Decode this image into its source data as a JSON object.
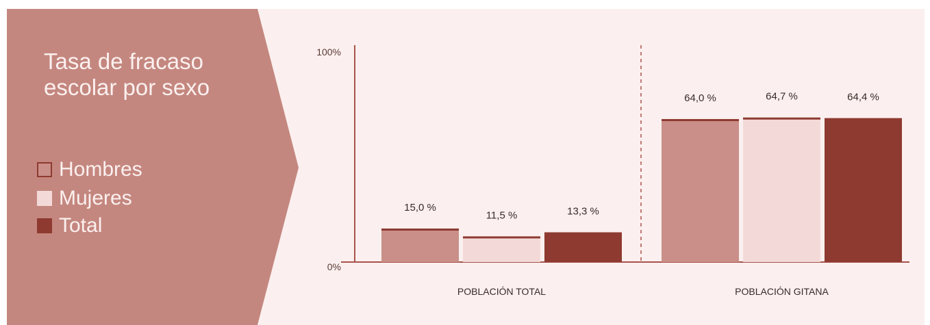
{
  "panel": {
    "title_line1": "Tasa de fracaso",
    "title_line2": "escolar por sexo",
    "background_color": "#c4877f",
    "text_color": "#fbf0ef"
  },
  "legend": [
    {
      "label": "Hombres",
      "color": "#c98f88",
      "outlined": true
    },
    {
      "label": "Mujeres",
      "color": "#f3dad8",
      "outlined": false
    },
    {
      "label": "Total",
      "color": "#8e3a30",
      "outlined": false
    }
  ],
  "chart_data": {
    "type": "bar",
    "categories": [
      "POBLACIÓN TOTAL",
      "POBLACIÓN GITANA"
    ],
    "series": [
      {
        "name": "Hombres",
        "values": [
          15.0,
          64.0
        ],
        "labels": [
          "15,0 %",
          "64,0 %"
        ],
        "color": "#c98f88"
      },
      {
        "name": "Mujeres",
        "values": [
          11.5,
          64.7
        ],
        "labels": [
          "11,5 %",
          "64,7 %"
        ],
        "color": "#f3dad8"
      },
      {
        "name": "Total",
        "values": [
          13.3,
          64.4
        ],
        "labels": [
          "13,3 %",
          "64,4 %"
        ],
        "color": "#8e3a30"
      }
    ],
    "yticks": [
      "0%",
      "100%"
    ],
    "ylim": [
      0,
      100
    ],
    "grid": false,
    "separator": "dashed",
    "axis_color": "#a9524a",
    "legend_position": "left"
  }
}
